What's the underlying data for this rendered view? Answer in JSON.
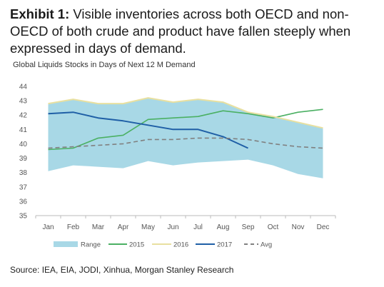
{
  "header": {
    "exhibit_label": "Exhibit 1:",
    "text": "Visible inventories across both OECD and non-OECD of both crude and product have fallen steeply when expressed in days of demand."
  },
  "source": "Source: IEA, EIA, JODI, Xinhua, Morgan Stanley Research",
  "colors": {
    "range": "#a8d8e6",
    "s2015": "#4bb063",
    "s2016": "#e8e0a0",
    "s2017": "#1f5fa6",
    "avg": "#808080",
    "axis": "#bbbbbb"
  },
  "chart_data": {
    "type": "line",
    "title": "Global Liquids Stocks in Days of Next 12 M Demand",
    "categories": [
      "Jan",
      "Feb",
      "Mar",
      "Apr",
      "May",
      "Jun",
      "Jul",
      "Aug",
      "Sep",
      "Oct",
      "Nov",
      "Dec"
    ],
    "ylim": [
      35,
      44
    ],
    "yticks": [
      35,
      36,
      37,
      38,
      39,
      40,
      41,
      42,
      43,
      44
    ],
    "grid": false,
    "legend_position": "bottom",
    "range": {
      "name": "Range",
      "upper": [
        42.8,
        43.1,
        42.8,
        42.8,
        43.2,
        42.9,
        43.1,
        42.9,
        42.2,
        41.9,
        41.5,
        41.1
      ],
      "lower": [
        38.1,
        38.5,
        38.4,
        38.3,
        38.8,
        38.5,
        38.7,
        38.8,
        38.9,
        38.5,
        37.9,
        37.6
      ]
    },
    "series": [
      {
        "name": "2015",
        "values": [
          39.6,
          39.7,
          40.4,
          40.6,
          41.7,
          41.8,
          41.9,
          42.3,
          42.1,
          41.8,
          42.2,
          42.4
        ],
        "style": "solid"
      },
      {
        "name": "2016",
        "values": [
          42.8,
          43.1,
          42.8,
          42.8,
          43.2,
          42.9,
          43.1,
          42.9,
          42.2,
          41.9,
          41.5,
          41.1
        ],
        "style": "solid"
      },
      {
        "name": "2017",
        "values": [
          42.1,
          42.2,
          41.8,
          41.6,
          41.3,
          41.0,
          41.0,
          40.5,
          39.7,
          null,
          null,
          null
        ],
        "style": "solid"
      },
      {
        "name": "Avg",
        "values": [
          39.7,
          39.8,
          39.9,
          40.0,
          40.3,
          40.3,
          40.4,
          40.4,
          40.3,
          40.0,
          39.8,
          39.7
        ],
        "style": "dashed"
      }
    ]
  }
}
